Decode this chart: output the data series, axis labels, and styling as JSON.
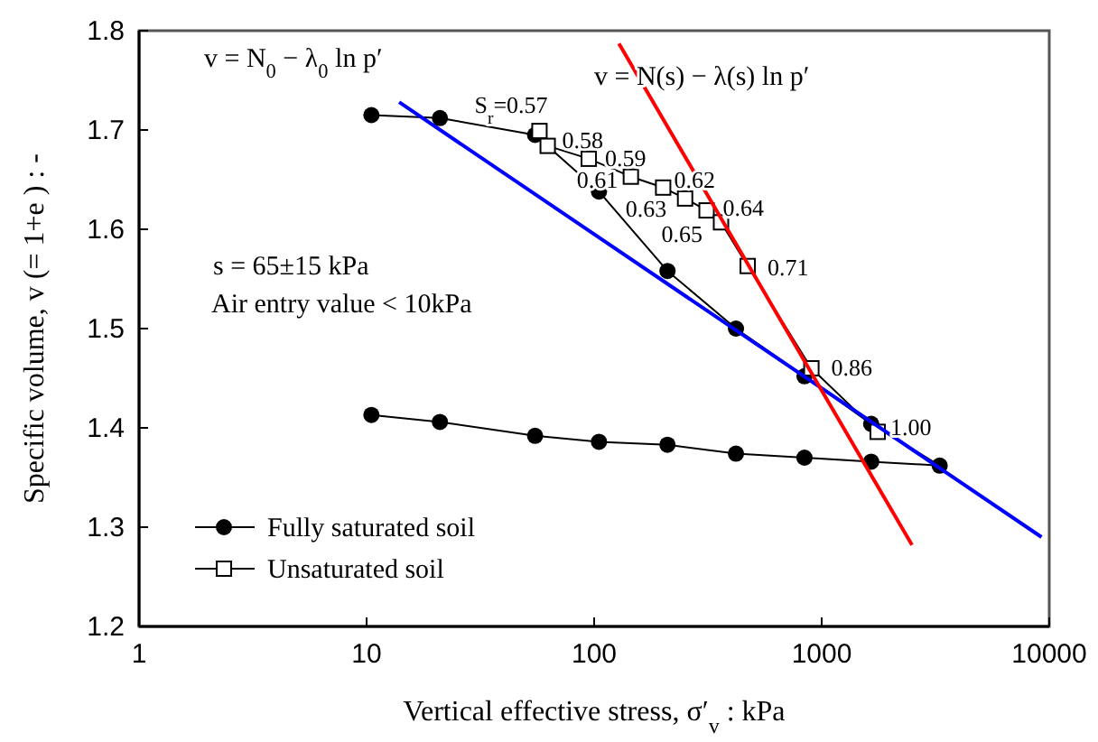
{
  "chart_data": {
    "type": "line",
    "xlabel": "Vertical effective stress, σ′$_{v}$ : kPa",
    "ylabel": "Specific volume, v (= 1+e ) : -",
    "log": "x",
    "xlim": [
      1,
      10000
    ],
    "xticks": [
      1,
      10,
      100,
      1000,
      10000
    ],
    "ylim": [
      1.2,
      1.8
    ],
    "yticks": [
      1.2,
      1.3,
      1.4,
      1.5,
      1.6,
      1.7,
      1.8
    ],
    "grid": false,
    "legend": "bottom left",
    "series": [
      {
        "name": "Fully saturated soil",
        "color": "#000000",
        "marker": "circle",
        "x": [
          10.5,
          21,
          55,
          105,
          210,
          420,
          840,
          1650,
          3300,
          1650,
          840,
          420,
          210,
          105,
          55,
          21,
          10.5
        ],
        "values": [
          1.715,
          1.712,
          1.695,
          1.638,
          1.558,
          1.5,
          1.452,
          1.404,
          1.362,
          1.366,
          1.37,
          1.374,
          1.383,
          1.386,
          1.392,
          1.406,
          1.413
        ]
      },
      {
        "name": "Unsaturated soil",
        "color": "#000000",
        "marker": "square",
        "x": [
          57.5,
          62.5,
          94.7,
          145,
          201,
          251,
          312,
          361,
          473,
          901,
          1762
        ],
        "values": [
          1.699,
          1.684,
          1.671,
          1.653,
          1.642,
          1.631,
          1.619,
          1.607,
          1.563,
          1.46,
          1.396
        ]
      },
      {
        "color": "#0000ff",
        "marker": "none",
        "x": [
          13.9,
          9250
        ],
        "values": [
          1.728,
          1.29
        ]
      },
      {
        "color": "#ff0000",
        "marker": "none",
        "x": [
          128.5,
          2494
        ],
        "values": [
          1.787,
          1.282
        ]
      }
    ],
    "annotations": [
      "v = N$_{0}$ − λ$_{0}$ ln p′",
      "v = N(s) − λ(s) ln p′",
      "s = 65±15 kPa",
      "Air entry value < 10kPa",
      {
        "text": "S$_{r}$=0.57",
        "x": 57.5,
        "y": 1.699
      },
      {
        "text": "0.58",
        "x": 62.5,
        "y": 1.684
      },
      {
        "text": "0.59",
        "x": 94.7,
        "y": 1.671
      },
      {
        "text": "0.61",
        "x": 145,
        "y": 1.653
      },
      {
        "text": "0.62",
        "x": 201,
        "y": 1.642
      },
      {
        "text": "0.63",
        "x": 251,
        "y": 1.631
      },
      {
        "text": "0.64",
        "x": 312,
        "y": 1.619
      },
      {
        "text": "0.65",
        "x": 361,
        "y": 1.607
      },
      {
        "text": "0.71",
        "x": 473,
        "y": 1.563
      },
      {
        "text": "0.86",
        "x": 901,
        "y": 1.46
      },
      {
        "text": "1.00",
        "x": 1762,
        "y": 1.396
      }
    ]
  }
}
